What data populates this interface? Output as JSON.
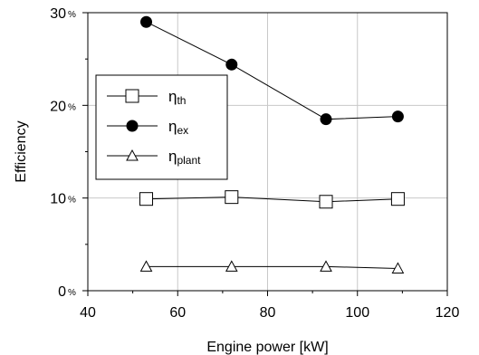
{
  "chart_data": {
    "type": "line",
    "xlabel": "Engine power [kW]",
    "ylabel": "Efficiency",
    "xlim": [
      40,
      120
    ],
    "ylim": [
      0,
      30
    ],
    "x_ticks": [
      40,
      60,
      80,
      100,
      120
    ],
    "y_ticks": [
      0,
      10,
      20,
      30
    ],
    "y_tick_suffix": "%",
    "grid": true,
    "legend_position": "left",
    "series": [
      {
        "name": "η",
        "subscript": "th",
        "marker": "square-open",
        "color": "#000000",
        "x": [
          53,
          72,
          93,
          109
        ],
        "y": [
          9.9,
          10.1,
          9.6,
          9.9
        ]
      },
      {
        "name": "η",
        "subscript": "ex",
        "marker": "circle-filled",
        "color": "#000000",
        "x": [
          53,
          72,
          93,
          109
        ],
        "y": [
          29.0,
          24.4,
          18.5,
          18.8
        ]
      },
      {
        "name": "η",
        "subscript": "plant",
        "marker": "triangle-open",
        "color": "#000000",
        "x": [
          53,
          72,
          93,
          109
        ],
        "y": [
          2.6,
          2.6,
          2.6,
          2.4
        ]
      }
    ]
  }
}
